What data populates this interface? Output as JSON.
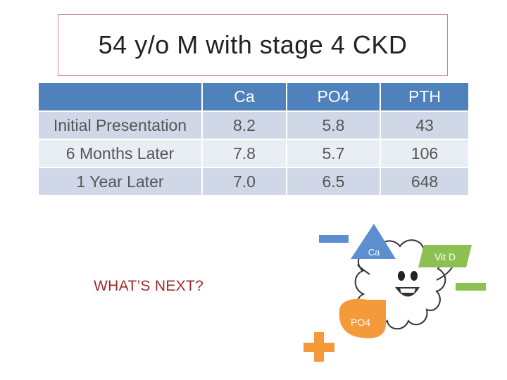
{
  "title": "54 y/o M with stage 4 CKD",
  "table": {
    "headers": [
      "",
      "Ca",
      "PO4",
      "PTH"
    ],
    "rows": [
      {
        "label": "Initial Presentation",
        "ca": "8.2",
        "po4": "5.8",
        "pth": "43"
      },
      {
        "label": "6 Months Later",
        "ca": "7.8",
        "po4": "5.7",
        "pth": "106"
      },
      {
        "label": "1 Year Later",
        "ca": "7.0",
        "po4": "6.5",
        "pth": "648"
      }
    ]
  },
  "prompt": "WHAT’S NEXT?",
  "illustration": {
    "ca_label": "Ca",
    "vitd_label": "Vit D",
    "po4_label": "PO4",
    "colors": {
      "blue": "#5b8fd0",
      "green": "#8cc152",
      "orange": "#f59a3a"
    }
  }
}
